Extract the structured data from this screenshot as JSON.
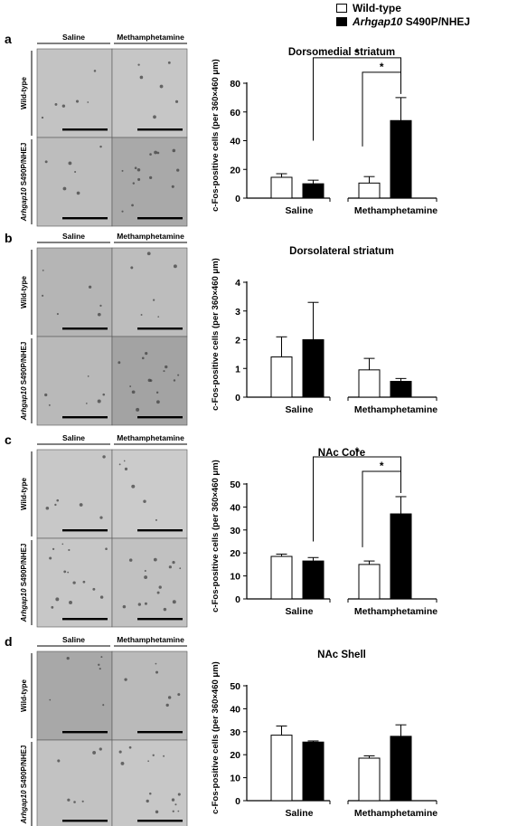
{
  "legend": {
    "items": [
      {
        "label": "Wild-type",
        "fill": "#ffffff"
      },
      {
        "label_italic": "Arhgap10",
        "label_rest": " S490P/NHEJ",
        "fill": "#000000"
      }
    ]
  },
  "micrographs": {
    "col_labels": [
      "Saline",
      "Methamphetamine"
    ],
    "row_labels": [
      "Wild-type",
      "S490P/NHEJ"
    ],
    "row_label_italic": "Arhgap10",
    "tone": {
      "a": [
        "#c3c3c3",
        "#c6c6c6",
        "#bdbdbd",
        "#a9a9a9"
      ],
      "b": [
        "#b5b5b5",
        "#bdbdbd",
        "#b9b9b9",
        "#a3a3a3"
      ],
      "c": [
        "#c8c8c8",
        "#cbcbcb",
        "#c7c7c7",
        "#c1c1c1"
      ],
      "d": [
        "#a8a8a8",
        "#bababa",
        "#c2c2c2",
        "#c7c7c7"
      ]
    }
  },
  "chart_data": [
    {
      "panel": "a",
      "type": "bar",
      "title": "Dorsomedial striatum",
      "ylabel": "c-Fos-positive cells (per 360×460 μm)",
      "categories": [
        "Saline",
        "Methamphetamine"
      ],
      "ylim": [
        0,
        80
      ],
      "yticks": [
        0,
        20,
        40,
        60,
        80
      ],
      "series": [
        {
          "name": "Wild-type",
          "color": "#ffffff",
          "values": [
            14.5,
            10.5
          ],
          "errors": [
            2.5,
            4.5
          ]
        },
        {
          "name": "Arhgap10 S490P/NHEJ",
          "color": "#000000",
          "values": [
            10,
            54
          ],
          "errors": [
            2.5,
            16
          ]
        }
      ],
      "significance": [
        "*",
        "*"
      ]
    },
    {
      "panel": "b",
      "type": "bar",
      "title": "Dorsolateral striatum",
      "ylabel": "c-Fos-positive cells (per 360×460 μm)",
      "categories": [
        "Saline",
        "Methamphetamine"
      ],
      "ylim": [
        0,
        4
      ],
      "yticks": [
        0,
        1,
        2,
        3,
        4
      ],
      "series": [
        {
          "name": "Wild-type",
          "color": "#ffffff",
          "values": [
            1.4,
            0.95
          ],
          "errors": [
            0.7,
            0.4
          ]
        },
        {
          "name": "Arhgap10 S490P/NHEJ",
          "color": "#000000",
          "values": [
            2.0,
            0.55
          ],
          "errors": [
            1.3,
            0.1
          ]
        }
      ],
      "significance": []
    },
    {
      "panel": "c",
      "type": "bar",
      "title": "NAc Core",
      "ylabel": "c-Fos-positive cells (per 360×460 μm)",
      "categories": [
        "Saline",
        "Methamphetamine"
      ],
      "ylim": [
        0,
        50
      ],
      "yticks": [
        0,
        10,
        20,
        30,
        40,
        50
      ],
      "series": [
        {
          "name": "Wild-type",
          "color": "#ffffff",
          "values": [
            18.5,
            15
          ],
          "errors": [
            1,
            1.5
          ]
        },
        {
          "name": "Arhgap10 S490P/NHEJ",
          "color": "#000000",
          "values": [
            16.5,
            37
          ],
          "errors": [
            1.5,
            7.5
          ]
        }
      ],
      "significance": [
        "*",
        "*"
      ]
    },
    {
      "panel": "d",
      "type": "bar",
      "title": "NAc Shell",
      "ylabel": "c-Fos-positive cells (per 360×460 μm)",
      "categories": [
        "Saline",
        "Methamphetamine"
      ],
      "ylim": [
        0,
        50
      ],
      "yticks": [
        0,
        10,
        20,
        30,
        40,
        50
      ],
      "series": [
        {
          "name": "Wild-type",
          "color": "#ffffff",
          "values": [
            28.5,
            18.5
          ],
          "errors": [
            4,
            1
          ]
        },
        {
          "name": "Arhgap10 S490P/NHEJ",
          "color": "#000000",
          "values": [
            25.5,
            28
          ],
          "errors": [
            0.5,
            5
          ]
        }
      ],
      "significance": []
    }
  ]
}
